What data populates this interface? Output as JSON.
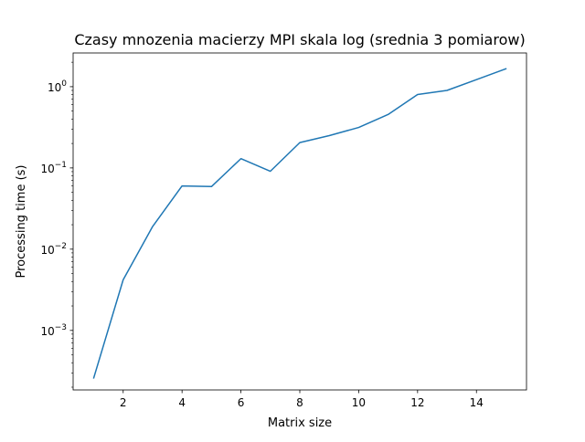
{
  "chart_data": {
    "type": "line",
    "title": "Czasy mnozenia macierzy MPI skala log (srednia 3 pomiarow)",
    "xlabel": "Matrix size",
    "ylabel": "Processing time (s)",
    "yscale": "log",
    "xlim": [
      0.3,
      15.7
    ],
    "ylim": [
      0.000185,
      2.6
    ],
    "x_ticks": [
      2,
      4,
      6,
      8,
      10,
      12,
      14
    ],
    "y_ticks": [
      {
        "base": "10",
        "exp": "−3",
        "value": 0.001
      },
      {
        "base": "10",
        "exp": "−2",
        "value": 0.01
      },
      {
        "base": "10",
        "exp": "−1",
        "value": 0.1
      },
      {
        "base": "10",
        "exp": "0",
        "value": 1
      }
    ],
    "grid": false,
    "legend": "none",
    "line_color": "#1f77b4",
    "series": [
      {
        "x": [
          1,
          2,
          3,
          4,
          5,
          6,
          7,
          8,
          9,
          10,
          11,
          12,
          13,
          14,
          15
        ],
        "values": [
          0.00026,
          0.0042,
          0.019,
          0.06,
          0.059,
          0.13,
          0.091,
          0.205,
          0.25,
          0.315,
          0.455,
          0.8,
          0.9,
          1.22,
          1.66
        ]
      }
    ]
  }
}
